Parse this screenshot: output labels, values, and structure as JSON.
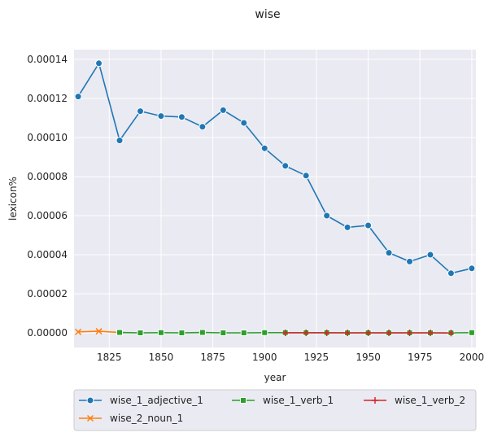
{
  "chart_data": {
    "type": "line",
    "title": "wise",
    "xlabel": "year",
    "ylabel": "lexicon%",
    "xlim": [
      1808,
      2002
    ],
    "ylim": [
      -7.5e-06,
      0.000145
    ],
    "xticks": [
      1825,
      1850,
      1875,
      1900,
      1925,
      1950,
      1975,
      2000
    ],
    "yticks": [
      0,
      2e-05,
      4e-05,
      6e-05,
      8e-05,
      0.0001,
      0.00012,
      0.00014
    ],
    "xtick_labels": [
      "1825",
      "1850",
      "1875",
      "1900",
      "1925",
      "1950",
      "1975",
      "2000"
    ],
    "ytick_labels": [
      "0.00000",
      "0.00002",
      "0.00004",
      "0.00006",
      "0.00008",
      "0.00010",
      "0.00012",
      "0.00014"
    ],
    "grid": true,
    "legend_position": "bottom",
    "series": [
      {
        "name": "wise_1_adjective_1",
        "color": "#1f77b4",
        "marker": "circle",
        "x": [
          1810,
          1820,
          1830,
          1840,
          1850,
          1860,
          1870,
          1880,
          1890,
          1900,
          1910,
          1920,
          1930,
          1940,
          1950,
          1960,
          1970,
          1980,
          1990,
          2000
        ],
        "y": [
          0.000121,
          0.000138,
          9.85e-05,
          0.0001135,
          0.000111,
          0.0001105,
          0.0001055,
          0.000114,
          0.0001075,
          9.45e-05,
          8.55e-05,
          8.05e-05,
          6e-05,
          5.4e-05,
          5.5e-05,
          4.1e-05,
          3.65e-05,
          4e-05,
          3.05e-05,
          3.3e-05
        ]
      },
      {
        "name": "wise_2_noun_1",
        "color": "#ff7f0e",
        "marker": "x",
        "x": [
          1810,
          1820,
          1830
        ],
        "y": [
          5e-07,
          8e-07,
          2e-07
        ]
      },
      {
        "name": "wise_1_verb_1",
        "color": "#2ca02c",
        "marker": "square",
        "x": [
          1830,
          1840,
          1850,
          1860,
          1870,
          1880,
          1890,
          1900,
          1910,
          1920,
          1930,
          1940,
          1950,
          1960,
          1970,
          1980,
          1990,
          2000
        ],
        "y": [
          2e-07,
          0.0,
          1e-07,
          0.0,
          2e-07,
          0.0,
          0.0,
          1e-07,
          1e-07,
          1e-07,
          1e-07,
          0.0,
          0.0,
          0.0,
          0.0,
          0.0,
          0.0,
          1e-07
        ]
      },
      {
        "name": "wise_1_verb_2",
        "color": "#d62728",
        "marker": "plus",
        "x": [
          1910,
          1920,
          1930,
          1940,
          1950,
          1960,
          1970,
          1980,
          1990
        ],
        "y": [
          0.0,
          0.0,
          0.0,
          0.0,
          0.0,
          0.0,
          0.0,
          0.0,
          -1e-07
        ]
      }
    ]
  }
}
